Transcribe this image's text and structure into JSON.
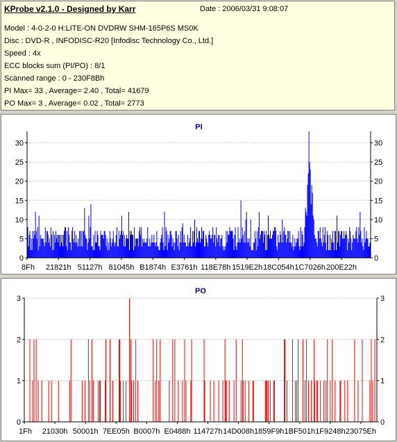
{
  "info": {
    "title": "KProbe v2.1.0 - Designed by Karr",
    "date": "Date : 2006/03/31 9:08:07",
    "model": "Model : 4-0-2-0 H:LITE-ON DVDRW SHM-165P6S MS0K",
    "disc": "Disc : DVD-R , INFODISC-R20 [Infodisc Technology Co., Ltd.]",
    "speed": "Speed : 4x",
    "ecc": "ECC blocks sum (PI/PO) : 8/1",
    "range": "Scanned range : 0 - 230F8Bh",
    "pi_stats": "PI Max= 33 , Average= 2.40 , Total= 41679",
    "po_stats": "PO Max= 3 , Average= 0.02 , Total= 2773"
  },
  "colors": {
    "pi_bar": "#0000ff",
    "po_bar": "#ff0000",
    "panel_bg": "#ffffff",
    "info_bg": "#ffffe1",
    "window_bg": "#d4d0c8"
  },
  "chart_data": [
    {
      "type": "bar",
      "title": "PI",
      "x_tick_labels": [
        "8Fh",
        "21821h",
        "51127h",
        "81045h",
        "B1874h",
        "E3761h",
        "118E78h",
        "1519E2h",
        "18C054h",
        "1C7026h",
        "200E22h"
      ],
      "y_ticks": [
        0,
        5,
        10,
        15,
        20,
        25,
        30
      ],
      "ylim": [
        0,
        33
      ],
      "grid": true,
      "max": 33,
      "average": 2.4,
      "peak_position_fraction": 0.82,
      "baseline_range": [
        2,
        8
      ],
      "series": [
        {
          "values": []
        }
      ]
    },
    {
      "type": "bar",
      "title": "PO",
      "x_tick_labels": [
        "1Fh",
        "21030h",
        "50001h",
        "7EE05h",
        "B0007h",
        "E0488h",
        "114727h",
        "14D008h",
        "1859F9h",
        "1BF501h",
        "1F9248h",
        "23075Eh"
      ],
      "y_ticks": [
        0,
        1,
        2,
        3
      ],
      "ylim": [
        0,
        3
      ],
      "grid": true,
      "max": 3,
      "average": 0.02,
      "max_position_fraction": 0.298,
      "series": [
        {
          "values": []
        }
      ]
    }
  ]
}
